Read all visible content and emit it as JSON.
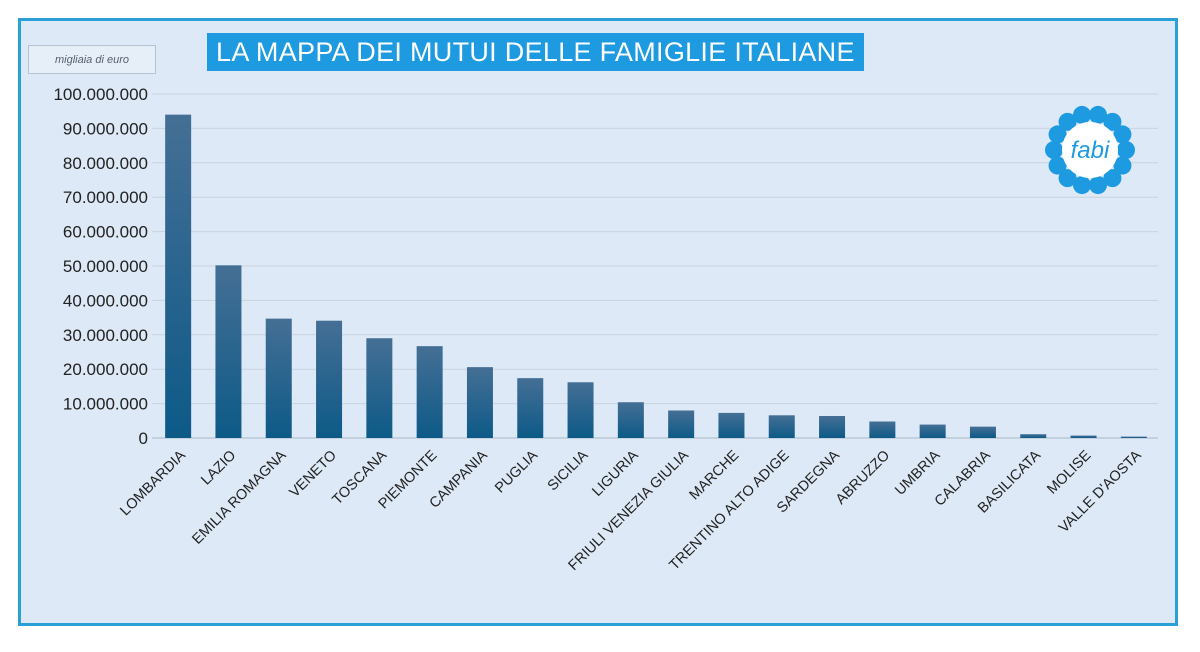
{
  "chart_data": {
    "type": "bar",
    "title": "LA MAPPA DEI MUTUI DELLE FAMIGLIE ITALIANE",
    "unit_label": "migliaia di euro",
    "ylim": [
      0,
      100000000
    ],
    "yticks": [
      "0",
      "10.000.000",
      "20.000.000",
      "30.000.000",
      "40.000.000",
      "50.000.000",
      "60.000.000",
      "70.000.000",
      "80.000.000",
      "90.000.000",
      "100.000.000"
    ],
    "categories": [
      "LOMBARDIA",
      "LAZIO",
      "EMILIA ROMAGNA",
      "VENETO",
      "TOSCANA",
      "PIEMONTE",
      "CAMPANIA",
      "PUGLIA",
      "SICILIA",
      "LIGURIA",
      "FRIULI VENEZIA GIULIA",
      "MARCHE",
      "TRENTINO ALTO ADIGE",
      "SARDEGNA",
      "ABRUZZO",
      "UMBRIA",
      "CALABRIA",
      "BASILICATA",
      "MOLISE",
      "VALLE D'AOSTA"
    ],
    "values": [
      94000000,
      50200000,
      34700000,
      34100000,
      29000000,
      26700000,
      20600000,
      17400000,
      16200000,
      10400000,
      8000000,
      7300000,
      6600000,
      6400000,
      4800000,
      3900000,
      3300000,
      1100000,
      700000,
      400000
    ],
    "grid": true,
    "legend": "none",
    "bar_color_top": "#456f95",
    "bar_color_bottom": "#0d5a87"
  },
  "logo": {
    "text": "fabi",
    "color": "#1d9ae0"
  }
}
